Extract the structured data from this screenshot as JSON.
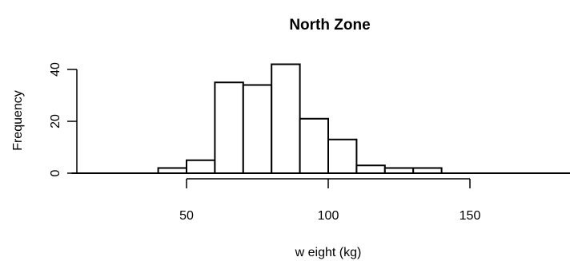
{
  "chart_data": {
    "type": "bar",
    "title": "North Zone",
    "xlabel": "w eight (kg)",
    "ylabel": "Frequency",
    "bin_width": 10,
    "bins": [
      {
        "x0": 10,
        "x1": 20,
        "count": 0
      },
      {
        "x0": 20,
        "x1": 30,
        "count": 0
      },
      {
        "x0": 30,
        "x1": 40,
        "count": 0
      },
      {
        "x0": 40,
        "x1": 50,
        "count": 2
      },
      {
        "x0": 50,
        "x1": 60,
        "count": 5
      },
      {
        "x0": 60,
        "x1": 70,
        "count": 35
      },
      {
        "x0": 70,
        "x1": 80,
        "count": 34
      },
      {
        "x0": 80,
        "x1": 90,
        "count": 42
      },
      {
        "x0": 90,
        "x1": 100,
        "count": 21
      },
      {
        "x0": 100,
        "x1": 110,
        "count": 13
      },
      {
        "x0": 110,
        "x1": 120,
        "count": 3
      },
      {
        "x0": 120,
        "x1": 130,
        "count": 2
      },
      {
        "x0": 130,
        "x1": 140,
        "count": 2
      },
      {
        "x0": 140,
        "x1": 150,
        "count": 0
      },
      {
        "x0": 150,
        "x1": 160,
        "count": 0
      },
      {
        "x0": 160,
        "x1": 170,
        "count": 0
      },
      {
        "x0": 170,
        "x1": 180,
        "count": 0
      },
      {
        "x0": 180,
        "x1": 190,
        "count": 0
      }
    ],
    "xticks": [
      50,
      100,
      150
    ],
    "yticks": [
      0,
      20,
      40
    ],
    "xlim": [
      10,
      190
    ],
    "ylim": [
      0,
      42
    ],
    "grid": false
  }
}
